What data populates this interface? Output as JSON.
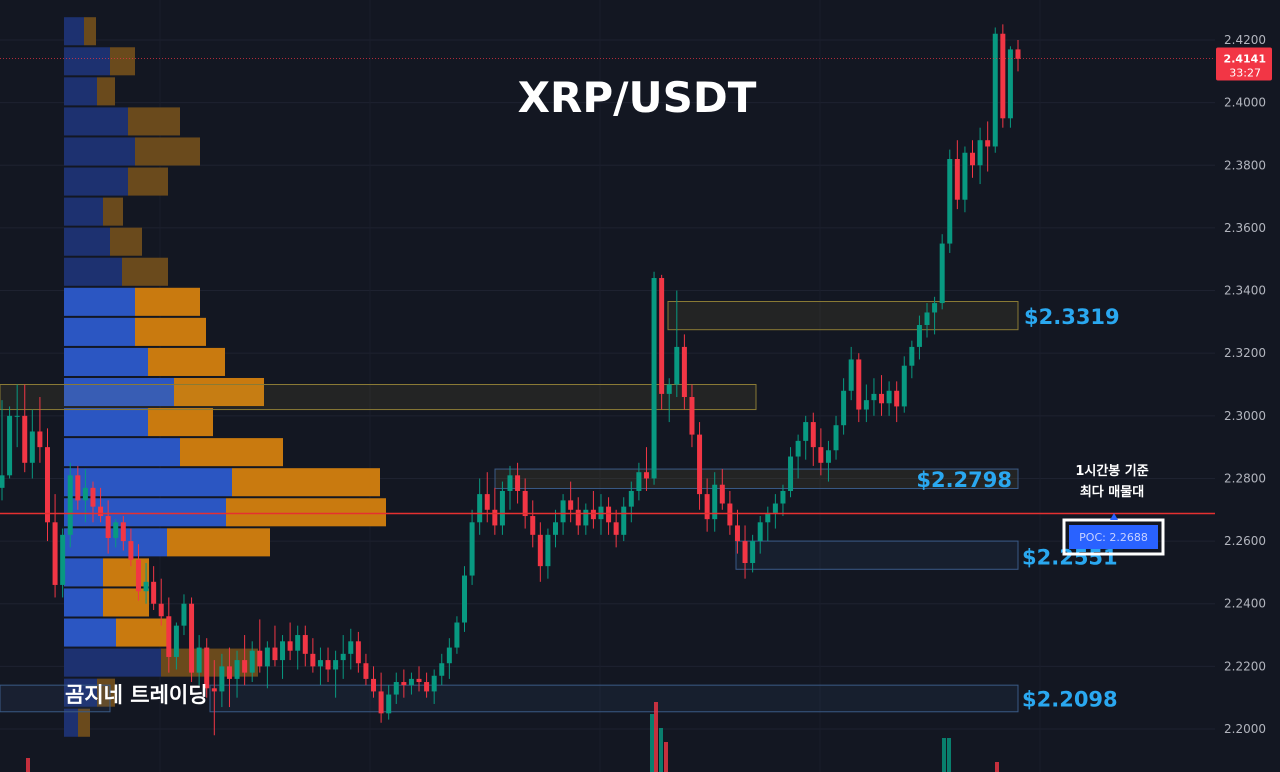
{
  "chart_data": {
    "type": "candlestick",
    "title": "XRP/USDT",
    "y_axis": {
      "range": [
        2.194,
        2.432
      ],
      "ticks": [
        "2.4200",
        "2.4000",
        "2.3800",
        "2.3600",
        "2.3400",
        "2.3200",
        "2.3000",
        "2.2800",
        "2.2600",
        "2.2400",
        "2.2200",
        "2.2000"
      ],
      "tick_values": [
        2.42,
        2.4,
        2.38,
        2.36,
        2.34,
        2.32,
        2.3,
        2.28,
        2.26,
        2.24,
        2.22,
        2.2
      ]
    },
    "current_price": {
      "value": 2.4141,
      "label": "2.4141",
      "countdown": "33:27",
      "color": "#f23645"
    },
    "poc": {
      "value": 2.2688,
      "label": "POC: 2.2688",
      "note_line1": "1시간봉 기준",
      "note_line2": "최다 매물대"
    },
    "levels": [
      {
        "value": 2.3319,
        "label": "$2.3319"
      },
      {
        "value": 2.2798,
        "label": "$2.2798"
      },
      {
        "value": 2.2551,
        "label": "$2.2551"
      },
      {
        "value": 2.2098,
        "label": "$2.2098"
      }
    ],
    "value_area_zone": [
      2.302,
      2.31
    ],
    "volume_profile": {
      "bin_size": 0.0096,
      "bins": [
        {
          "price": 2.4228,
          "buy": 20,
          "sell": 12
        },
        {
          "price": 2.4132,
          "buy": 46,
          "sell": 25
        },
        {
          "price": 2.4036,
          "buy": 33,
          "sell": 18
        },
        {
          "price": 2.394,
          "buy": 64,
          "sell": 52
        },
        {
          "price": 2.3844,
          "buy": 71,
          "sell": 65
        },
        {
          "price": 2.3748,
          "buy": 64,
          "sell": 40
        },
        {
          "price": 2.3652,
          "buy": 39,
          "sell": 20
        },
        {
          "price": 2.3556,
          "buy": 46,
          "sell": 32
        },
        {
          "price": 2.346,
          "buy": 58,
          "sell": 46
        },
        {
          "price": 2.3364,
          "buy": 71,
          "sell": 65
        },
        {
          "price": 2.3268,
          "buy": 71,
          "sell": 71
        },
        {
          "price": 2.3172,
          "buy": 84,
          "sell": 77
        },
        {
          "price": 2.3076,
          "buy": 110,
          "sell": 90
        },
        {
          "price": 2.298,
          "buy": 84,
          "sell": 65
        },
        {
          "price": 2.2884,
          "buy": 116,
          "sell": 103
        },
        {
          "price": 2.2788,
          "buy": 168,
          "sell": 148
        },
        {
          "price": 2.2692,
          "buy": 162,
          "sell": 160
        },
        {
          "price": 2.2596,
          "buy": 103,
          "sell": 103
        },
        {
          "price": 2.25,
          "buy": 39,
          "sell": 46
        },
        {
          "price": 2.2404,
          "buy": 39,
          "sell": 46
        },
        {
          "price": 2.2308,
          "buy": 52,
          "sell": 52
        },
        {
          "price": 2.2212,
          "buy": 97,
          "sell": 97
        },
        {
          "price": 2.2116,
          "buy": 33,
          "sell": 18
        },
        {
          "price": 2.202,
          "buy": 14,
          "sell": 12
        }
      ]
    },
    "candles_note": "Hourly candles, oldest to newest, [open, high, low, close] in USDT",
    "candles": [
      [
        2.277,
        2.305,
        2.273,
        2.281
      ],
      [
        2.281,
        2.303,
        2.28,
        2.3
      ],
      [
        2.3,
        2.31,
        2.29,
        2.3
      ],
      [
        2.3,
        2.31,
        2.282,
        2.285
      ],
      [
        2.285,
        2.302,
        2.28,
        2.295
      ],
      [
        2.295,
        2.306,
        2.285,
        2.29
      ],
      [
        2.29,
        2.296,
        2.26,
        2.266
      ],
      [
        2.266,
        2.275,
        2.242,
        2.246
      ],
      [
        2.246,
        2.264,
        2.242,
        2.262
      ],
      [
        2.262,
        2.285,
        2.258,
        2.281
      ],
      [
        2.281,
        2.284,
        2.27,
        2.273
      ],
      [
        2.273,
        2.283,
        2.266,
        2.277
      ],
      [
        2.277,
        2.279,
        2.266,
        2.271
      ],
      [
        2.271,
        2.277,
        2.266,
        2.268
      ],
      [
        2.268,
        2.273,
        2.256,
        2.261
      ],
      [
        2.261,
        2.267,
        2.258,
        2.266
      ],
      [
        2.266,
        2.268,
        2.257,
        2.26
      ],
      [
        2.26,
        2.264,
        2.252,
        2.254
      ],
      [
        2.254,
        2.259,
        2.241,
        2.244
      ],
      [
        2.244,
        2.253,
        2.24,
        2.247
      ],
      [
        2.247,
        2.252,
        2.238,
        2.24
      ],
      [
        2.24,
        2.248,
        2.233,
        2.236
      ],
      [
        2.236,
        2.242,
        2.218,
        2.223
      ],
      [
        2.223,
        2.234,
        2.219,
        2.233
      ],
      [
        2.233,
        2.243,
        2.23,
        2.24
      ],
      [
        2.24,
        2.242,
        2.215,
        2.218
      ],
      [
        2.218,
        2.23,
        2.214,
        2.226
      ],
      [
        2.226,
        2.229,
        2.21,
        2.213
      ],
      [
        2.213,
        2.222,
        2.198,
        2.212
      ],
      [
        2.212,
        2.224,
        2.207,
        2.22
      ],
      [
        2.22,
        2.226,
        2.207,
        2.216
      ],
      [
        2.216,
        2.225,
        2.21,
        2.222
      ],
      [
        2.222,
        2.23,
        2.214,
        2.218
      ],
      [
        2.218,
        2.228,
        2.215,
        2.225
      ],
      [
        2.225,
        2.235,
        2.218,
        2.22
      ],
      [
        2.22,
        2.228,
        2.213,
        2.226
      ],
      [
        2.226,
        2.233,
        2.22,
        2.222
      ],
      [
        2.222,
        2.23,
        2.216,
        2.228
      ],
      [
        2.228,
        2.234,
        2.222,
        2.225
      ],
      [
        2.225,
        2.233,
        2.219,
        2.23
      ],
      [
        2.23,
        2.233,
        2.22,
        2.224
      ],
      [
        2.224,
        2.229,
        2.218,
        2.22
      ],
      [
        2.22,
        2.226,
        2.214,
        2.222
      ],
      [
        2.222,
        2.226,
        2.215,
        2.219
      ],
      [
        2.219,
        2.225,
        2.21,
        2.222
      ],
      [
        2.222,
        2.23,
        2.216,
        2.224
      ],
      [
        2.224,
        2.232,
        2.219,
        2.228
      ],
      [
        2.228,
        2.231,
        2.218,
        2.221
      ],
      [
        2.221,
        2.224,
        2.214,
        2.216
      ],
      [
        2.216,
        2.22,
        2.21,
        2.212
      ],
      [
        2.212,
        2.218,
        2.202,
        2.205
      ],
      [
        2.205,
        2.214,
        2.203,
        2.211
      ],
      [
        2.211,
        2.218,
        2.208,
        2.215
      ],
      [
        2.215,
        2.219,
        2.21,
        2.214
      ],
      [
        2.214,
        2.218,
        2.211,
        2.216
      ],
      [
        2.216,
        2.22,
        2.212,
        2.215
      ],
      [
        2.215,
        2.218,
        2.21,
        2.212
      ],
      [
        2.212,
        2.219,
        2.208,
        2.217
      ],
      [
        2.217,
        2.224,
        2.214,
        2.221
      ],
      [
        2.221,
        2.229,
        2.216,
        2.226
      ],
      [
        2.226,
        2.236,
        2.224,
        2.234
      ],
      [
        2.234,
        2.252,
        2.231,
        2.249
      ],
      [
        2.249,
        2.27,
        2.246,
        2.266
      ],
      [
        2.266,
        2.28,
        2.262,
        2.275
      ],
      [
        2.275,
        2.282,
        2.266,
        2.27
      ],
      [
        2.27,
        2.277,
        2.262,
        2.265
      ],
      [
        2.265,
        2.279,
        2.262,
        2.276
      ],
      [
        2.276,
        2.284,
        2.27,
        2.281
      ],
      [
        2.281,
        2.285,
        2.272,
        2.276
      ],
      [
        2.276,
        2.28,
        2.264,
        2.268
      ],
      [
        2.268,
        2.273,
        2.258,
        2.262
      ],
      [
        2.262,
        2.266,
        2.247,
        2.252
      ],
      [
        2.252,
        2.264,
        2.248,
        2.262
      ],
      [
        2.262,
        2.27,
        2.258,
        2.266
      ],
      [
        2.266,
        2.275,
        2.262,
        2.273
      ],
      [
        2.273,
        2.279,
        2.266,
        2.27
      ],
      [
        2.27,
        2.274,
        2.262,
        2.265
      ],
      [
        2.265,
        2.272,
        2.262,
        2.27
      ],
      [
        2.27,
        2.276,
        2.264,
        2.267
      ],
      [
        2.267,
        2.275,
        2.262,
        2.271
      ],
      [
        2.271,
        2.274,
        2.262,
        2.266
      ],
      [
        2.266,
        2.27,
        2.258,
        2.262
      ],
      [
        2.262,
        2.274,
        2.26,
        2.271
      ],
      [
        2.271,
        2.279,
        2.266,
        2.276
      ],
      [
        2.276,
        2.285,
        2.273,
        2.282
      ],
      [
        2.282,
        2.29,
        2.276,
        2.28
      ],
      [
        2.28,
        2.346,
        2.278,
        2.344
      ],
      [
        2.344,
        2.345,
        2.302,
        2.307
      ],
      [
        2.307,
        2.312,
        2.298,
        2.31
      ],
      [
        2.31,
        2.34,
        2.306,
        2.322
      ],
      [
        2.322,
        2.326,
        2.302,
        2.306
      ],
      [
        2.306,
        2.31,
        2.29,
        2.294
      ],
      [
        2.294,
        2.298,
        2.27,
        2.275
      ],
      [
        2.275,
        2.28,
        2.263,
        2.267
      ],
      [
        2.267,
        2.282,
        2.263,
        2.278
      ],
      [
        2.278,
        2.283,
        2.27,
        2.272
      ],
      [
        2.272,
        2.276,
        2.262,
        2.265
      ],
      [
        2.265,
        2.27,
        2.256,
        2.26
      ],
      [
        2.26,
        2.265,
        2.248,
        2.253
      ],
      [
        2.253,
        2.262,
        2.25,
        2.26
      ],
      [
        2.26,
        2.268,
        2.256,
        2.266
      ],
      [
        2.266,
        2.271,
        2.26,
        2.269
      ],
      [
        2.269,
        2.275,
        2.264,
        2.272
      ],
      [
        2.272,
        2.278,
        2.268,
        2.276
      ],
      [
        2.276,
        2.29,
        2.274,
        2.287
      ],
      [
        2.287,
        2.294,
        2.28,
        2.292
      ],
      [
        2.292,
        2.3,
        2.286,
        2.298
      ],
      [
        2.298,
        2.301,
        2.284,
        2.29
      ],
      [
        2.29,
        2.296,
        2.281,
        2.285
      ],
      [
        2.285,
        2.292,
        2.279,
        2.289
      ],
      [
        2.289,
        2.3,
        2.286,
        2.297
      ],
      [
        2.297,
        2.312,
        2.294,
        2.308
      ],
      [
        2.308,
        2.322,
        2.305,
        2.318
      ],
      [
        2.318,
        2.32,
        2.298,
        2.302
      ],
      [
        2.302,
        2.31,
        2.298,
        2.305
      ],
      [
        2.305,
        2.312,
        2.3,
        2.307
      ],
      [
        2.307,
        2.313,
        2.3,
        2.304
      ],
      [
        2.304,
        2.311,
        2.3,
        2.308
      ],
      [
        2.308,
        2.311,
        2.298,
        2.303
      ],
      [
        2.303,
        2.319,
        2.301,
        2.316
      ],
      [
        2.316,
        2.324,
        2.312,
        2.322
      ],
      [
        2.322,
        2.332,
        2.318,
        2.329
      ],
      [
        2.329,
        2.336,
        2.325,
        2.333
      ],
      [
        2.333,
        2.338,
        2.326,
        2.336
      ],
      [
        2.336,
        2.358,
        2.334,
        2.355
      ],
      [
        2.355,
        2.385,
        2.352,
        2.382
      ],
      [
        2.382,
        2.388,
        2.366,
        2.369
      ],
      [
        2.369,
        2.386,
        2.365,
        2.384
      ],
      [
        2.384,
        2.388,
        2.376,
        2.38
      ],
      [
        2.38,
        2.392,
        2.374,
        2.388
      ],
      [
        2.388,
        2.394,
        2.378,
        2.386
      ],
      [
        2.386,
        2.424,
        2.384,
        2.422
      ],
      [
        2.422,
        2.425,
        2.392,
        2.395
      ],
      [
        2.395,
        2.418,
        2.392,
        2.417
      ],
      [
        2.417,
        2.42,
        2.41,
        2.414
      ]
    ]
  },
  "watermark": {
    "text": "곰지네 트레이딩"
  }
}
